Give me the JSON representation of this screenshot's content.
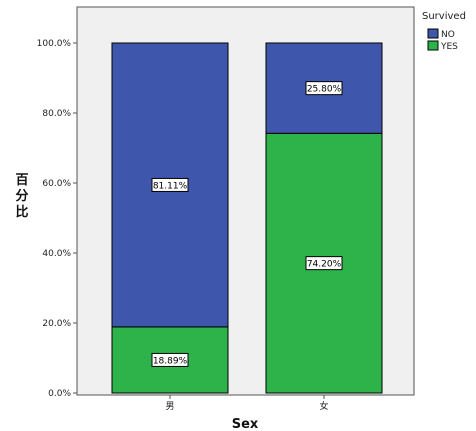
{
  "chart_data": {
    "type": "bar",
    "stacked": true,
    "percent": true,
    "categories": [
      "男",
      "女"
    ],
    "series": [
      {
        "name": "YES",
        "color": "#2db34a",
        "values": [
          18.89,
          74.2
        ]
      },
      {
        "name": "NO",
        "color": "#3f56ad",
        "values": [
          81.11,
          25.8
        ]
      }
    ],
    "data_labels": [
      [
        "18.89%",
        "81.11%"
      ],
      [
        "74.20%",
        "25.80%"
      ]
    ],
    "xlabel": "Sex",
    "ylabel": "百分比",
    "ylim": [
      0,
      100
    ],
    "yticks": [
      "0.0%",
      "20.0%",
      "40.0%",
      "60.0%",
      "80.0%",
      "100.0%"
    ],
    "legend": {
      "title": "Survived",
      "entries": [
        "NO",
        "YES"
      ],
      "colors": [
        "#3f56ad",
        "#2db34a"
      ],
      "position": "right"
    },
    "plot_background": "#f0f0f0",
    "grid": false
  }
}
